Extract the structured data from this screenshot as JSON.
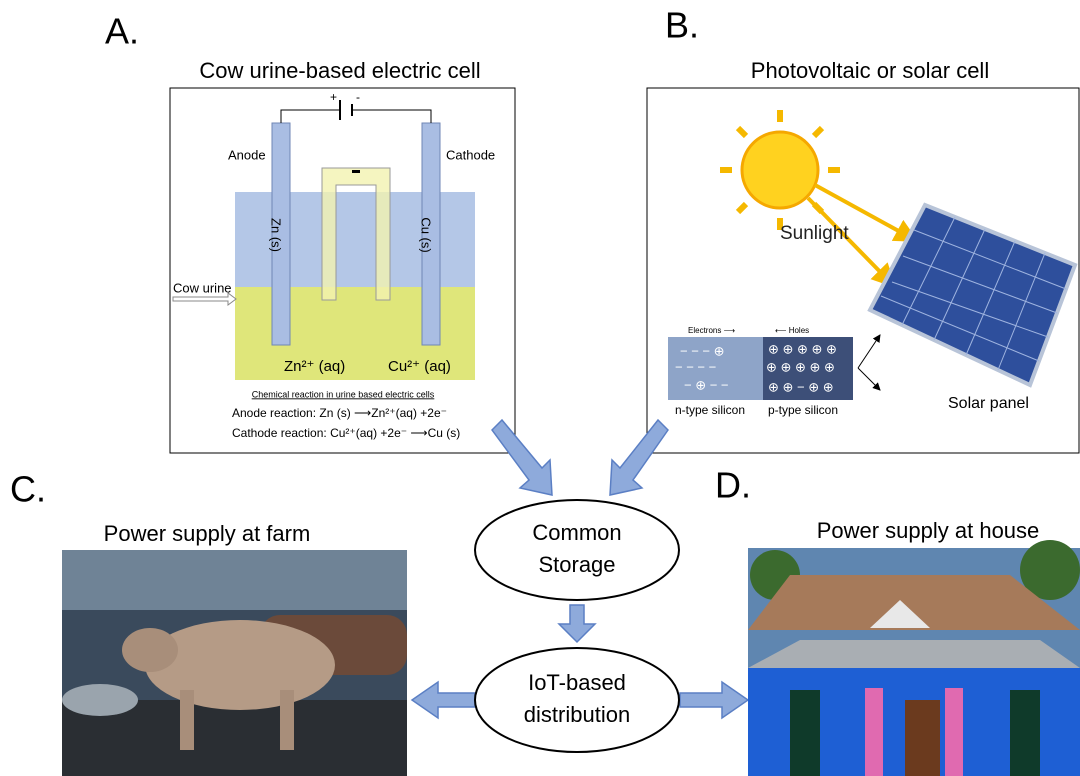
{
  "panels": [
    {
      "letter": "A.",
      "title": "Cow urine-based electric cell"
    },
    {
      "letter": "B.",
      "title": "Photovoltaic or solar cell"
    },
    {
      "letter": "C.",
      "title": "Power supply at farm"
    },
    {
      "letter": "D.",
      "title": "Power supply at house"
    }
  ],
  "cell": {
    "plus": "+",
    "minus": "-",
    "anode": "Anode",
    "cathode": "Cathode",
    "zn": "Zn (s)",
    "cu": "Cu (s)",
    "input": "Cow urine",
    "zn_ion": "Zn²⁺ (aq)",
    "cu_ion": "Cu²⁺ (aq)",
    "caption": "Chemical reaction in urine based electric cells",
    "anode_reaction": "Anode reaction:   Zn (s) ⟶Zn²⁺(aq) +2e⁻",
    "cathode_reaction": "Cathode reaction:  Cu²⁺(aq) +2e⁻ ⟶Cu (s)"
  },
  "solar": {
    "sunlight": "Sunlight",
    "electrons": "Electrons ⟶",
    "holes": "⟵ Holes",
    "n_type": "n-type silicon",
    "p_type": "p-type silicon",
    "panel": "Solar panel"
  },
  "nodes": [
    {
      "lines": [
        "Common",
        "Storage"
      ]
    },
    {
      "lines": [
        "IoT-based",
        "distribution"
      ]
    }
  ]
}
